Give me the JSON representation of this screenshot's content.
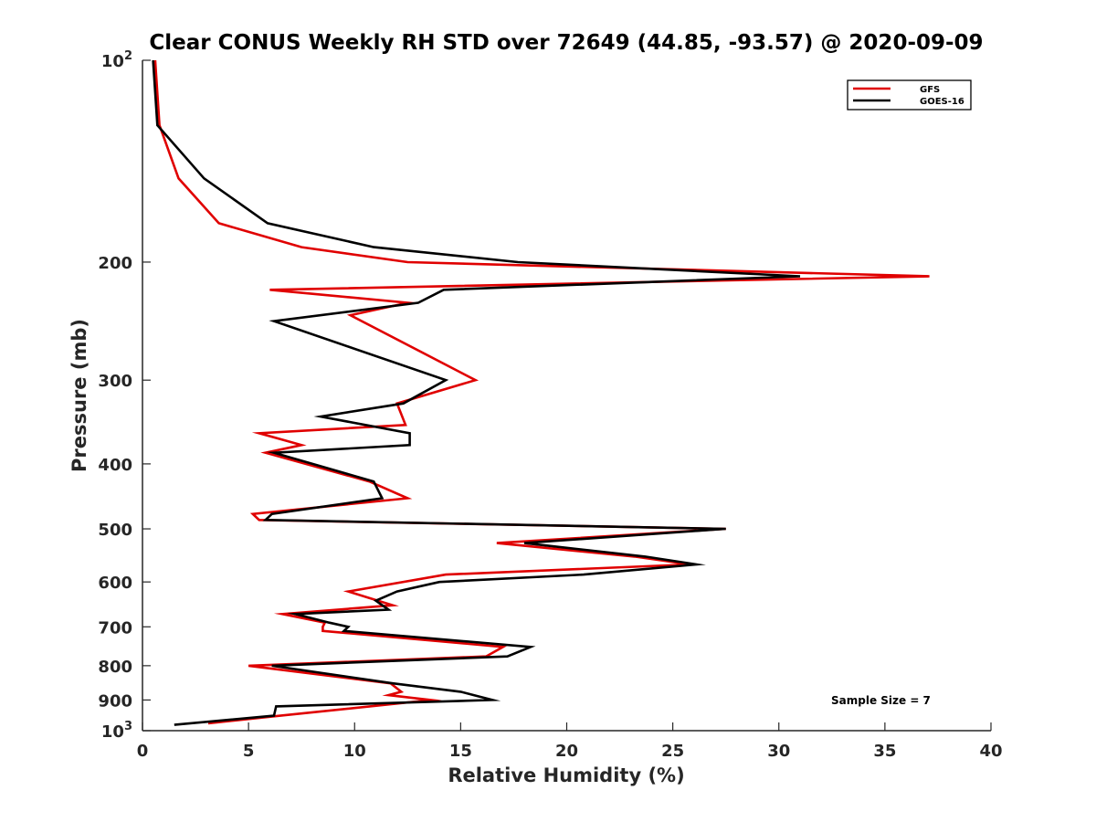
{
  "chart_data": {
    "type": "line",
    "title": "Clear CONUS Weekly RH STD over 72649 (44.85, -93.57) @ 2020-09-09",
    "xlabel": "Relative Humidity (%)",
    "ylabel": "Pressure (mb)",
    "xlim": [
      0,
      40
    ],
    "ylim": [
      100,
      1000
    ],
    "y_scale": "log",
    "y_reversed": true,
    "grid": false,
    "legend_position": "top-right",
    "x_ticks": [
      "0",
      "5",
      "10",
      "15",
      "20",
      "25",
      "30",
      "35",
      "40"
    ],
    "y_ticks": [
      {
        "value": 100,
        "base": "10",
        "exp": "2"
      },
      {
        "value": 200,
        "label": "200"
      },
      {
        "value": 300,
        "label": "300"
      },
      {
        "value": 400,
        "label": "400"
      },
      {
        "value": 500,
        "label": "500"
      },
      {
        "value": 600,
        "label": "600"
      },
      {
        "value": 700,
        "label": "700"
      },
      {
        "value": 800,
        "label": "800"
      },
      {
        "value": 900,
        "label": "900"
      },
      {
        "value": 1000,
        "base": "10",
        "exp": "3"
      }
    ],
    "annotation": "Sample Size = 7",
    "series": [
      {
        "name": "GFS",
        "color": "#e00000",
        "points": [
          [
            0.6,
            100
          ],
          [
            0.8,
            125
          ],
          [
            1.7,
            150
          ],
          [
            3.6,
            175
          ],
          [
            7.5,
            190
          ],
          [
            12.5,
            200
          ],
          [
            37.1,
            210
          ],
          [
            6.0,
            220
          ],
          [
            12.5,
            230
          ],
          [
            9.8,
            240
          ],
          [
            15.7,
            300
          ],
          [
            12.0,
            325
          ],
          [
            12.4,
            350
          ],
          [
            5.5,
            360
          ],
          [
            7.5,
            375
          ],
          [
            5.8,
            385
          ],
          [
            10.7,
            425
          ],
          [
            12.5,
            450
          ],
          [
            5.2,
            475
          ],
          [
            5.5,
            485
          ],
          [
            27.5,
            500
          ],
          [
            16.7,
            525
          ],
          [
            23.2,
            550
          ],
          [
            25.8,
            565
          ],
          [
            14.3,
            585
          ],
          [
            9.7,
            620
          ],
          [
            11.8,
            650
          ],
          [
            6.6,
            670
          ],
          [
            8.6,
            690
          ],
          [
            8.5,
            700
          ],
          [
            8.5,
            710
          ],
          [
            17.0,
            750
          ],
          [
            16.2,
            775
          ],
          [
            5.0,
            800
          ],
          [
            11.7,
            850
          ],
          [
            12.2,
            875
          ],
          [
            11.6,
            885
          ],
          [
            13.6,
            900
          ],
          [
            6.5,
            950
          ],
          [
            3.1,
            975
          ]
        ]
      },
      {
        "name": "GOES-16",
        "color": "#000000",
        "points": [
          [
            0.5,
            100
          ],
          [
            0.7,
            125
          ],
          [
            2.9,
            150
          ],
          [
            5.9,
            175
          ],
          [
            10.9,
            190
          ],
          [
            17.7,
            200
          ],
          [
            31.0,
            210
          ],
          [
            14.2,
            220
          ],
          [
            13.0,
            230
          ],
          [
            6.2,
            245
          ],
          [
            14.3,
            300
          ],
          [
            12.3,
            325
          ],
          [
            8.4,
            340
          ],
          [
            12.6,
            360
          ],
          [
            12.6,
            375
          ],
          [
            6.2,
            385
          ],
          [
            10.9,
            425
          ],
          [
            11.3,
            450
          ],
          [
            6.1,
            475
          ],
          [
            5.8,
            485
          ],
          [
            27.5,
            500
          ],
          [
            18.0,
            525
          ],
          [
            23.7,
            550
          ],
          [
            26.1,
            565
          ],
          [
            20.8,
            585
          ],
          [
            14.0,
            600
          ],
          [
            12.0,
            620
          ],
          [
            11.0,
            640
          ],
          [
            11.6,
            660
          ],
          [
            7.2,
            670
          ],
          [
            8.8,
            690
          ],
          [
            9.7,
            700
          ],
          [
            9.5,
            710
          ],
          [
            18.3,
            750
          ],
          [
            17.2,
            775
          ],
          [
            6.1,
            800
          ],
          [
            11.8,
            850
          ],
          [
            15.0,
            875
          ],
          [
            16.5,
            900
          ],
          [
            6.3,
            920
          ],
          [
            6.2,
            950
          ],
          [
            1.5,
            980
          ]
        ]
      }
    ]
  }
}
